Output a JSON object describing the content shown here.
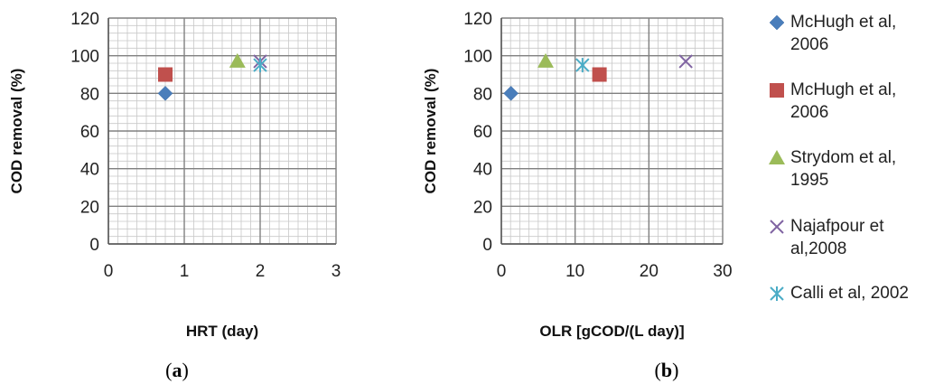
{
  "chart_data": [
    {
      "type": "scatter",
      "panel_label": "a",
      "xlabel": "HRT (day)",
      "ylabel": "COD removal (%)",
      "xlim": [
        0,
        3
      ],
      "ylim": [
        0,
        120
      ],
      "xticks": [
        0,
        1,
        2,
        3
      ],
      "yticks": [
        0,
        20,
        40,
        60,
        80,
        100,
        120
      ],
      "grid": true,
      "series": [
        {
          "name": "McHugh et al, 2006",
          "marker": "diamond",
          "color": "#4a7ebb",
          "points": [
            {
              "x": 0.75,
              "y": 80
            }
          ]
        },
        {
          "name": "McHugh et al, 2006",
          "marker": "square",
          "color": "#c0504d",
          "points": [
            {
              "x": 0.75,
              "y": 90
            }
          ]
        },
        {
          "name": "Strydom et al, 1995",
          "marker": "triangle",
          "color": "#9bbb59",
          "points": [
            {
              "x": 1.7,
              "y": 97
            }
          ]
        },
        {
          "name": "Najafpour et al,2008",
          "marker": "x",
          "color": "#8064a2",
          "points": [
            {
              "x": 2.0,
              "y": 97
            }
          ]
        },
        {
          "name": "Calli et al, 2002",
          "marker": "star",
          "color": "#4bacc6",
          "points": [
            {
              "x": 2.0,
              "y": 95
            }
          ]
        }
      ]
    },
    {
      "type": "scatter",
      "panel_label": "b",
      "xlabel": "OLR [gCOD/(L day)]",
      "ylabel": "COD removal (%)",
      "xlim": [
        0,
        30
      ],
      "ylim": [
        0,
        120
      ],
      "xticks": [
        0,
        10,
        20,
        30
      ],
      "yticks": [
        0,
        20,
        40,
        60,
        80,
        100,
        120
      ],
      "grid": true,
      "series": [
        {
          "name": "McHugh et al, 2006",
          "marker": "diamond",
          "color": "#4a7ebb",
          "points": [
            {
              "x": 1.3,
              "y": 80
            }
          ]
        },
        {
          "name": "McHugh et al, 2006",
          "marker": "square",
          "color": "#c0504d",
          "points": [
            {
              "x": 13.3,
              "y": 90
            }
          ]
        },
        {
          "name": "Strydom et al, 1995",
          "marker": "triangle",
          "color": "#9bbb59",
          "points": [
            {
              "x": 6.0,
              "y": 97
            }
          ]
        },
        {
          "name": "Najafpour et al,2008",
          "marker": "x",
          "color": "#8064a2",
          "points": [
            {
              "x": 25.0,
              "y": 97
            }
          ]
        },
        {
          "name": "Calli et al, 2002",
          "marker": "star",
          "color": "#4bacc6",
          "points": [
            {
              "x": 11.0,
              "y": 95
            }
          ]
        }
      ]
    }
  ],
  "legend": {
    "placement": "right",
    "entries": [
      {
        "lines": [
          "McHugh et al,",
          "2006"
        ],
        "marker": "diamond",
        "color": "#4a7ebb"
      },
      {
        "lines": [
          "McHugh et al,",
          "2006"
        ],
        "marker": "square",
        "color": "#c0504d"
      },
      {
        "lines": [
          "Strydom et al,",
          "1995"
        ],
        "marker": "triangle",
        "color": "#9bbb59"
      },
      {
        "lines": [
          "Najafpour et",
          "al,2008"
        ],
        "marker": "x",
        "color": "#8064a2"
      },
      {
        "lines": [
          "Calli et al, 2002"
        ],
        "marker": "star",
        "color": "#4bacc6"
      }
    ]
  }
}
